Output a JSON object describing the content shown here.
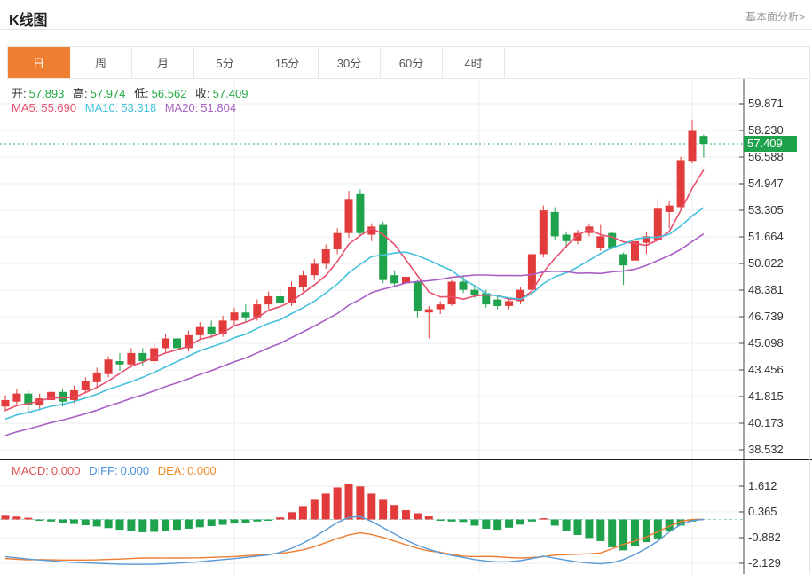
{
  "header": {
    "title": "K线图",
    "link": "基本面分析>"
  },
  "tabs": {
    "items": [
      {
        "id": "day",
        "label": "日",
        "active": true
      },
      {
        "id": "week",
        "label": "周",
        "active": false
      },
      {
        "id": "month",
        "label": "月",
        "active": false
      },
      {
        "id": "5m",
        "label": "5分",
        "active": false
      },
      {
        "id": "15m",
        "label": "15分",
        "active": false
      },
      {
        "id": "30m",
        "label": "30分",
        "active": false
      },
      {
        "id": "60m",
        "label": "60分",
        "active": false
      },
      {
        "id": "4h",
        "label": "4时",
        "active": false
      }
    ]
  },
  "info": {
    "open_label": "开:",
    "open": "57.893",
    "high_label": "高:",
    "high": "57.974",
    "low_label": "低:",
    "low": "56.562",
    "close_label": "收:",
    "close": "57.409",
    "ma5_label": "MA5:",
    "ma5": "55.690",
    "ma10_label": "MA10:",
    "ma10": "53.318",
    "ma20_label": "MA20:",
    "ma20": "51.804"
  },
  "macd_info": {
    "macd_label": "MACD:",
    "macd": "0.000",
    "diff_label": "DIFF:",
    "diff": "0.000",
    "dea_label": "DEA:",
    "dea": "0.000"
  },
  "colors": {
    "up": "#e23b3b",
    "down": "#1fa24c",
    "ma5": "#e8506e",
    "ma10": "#45c1dd",
    "ma20": "#a95fc4",
    "diff_line": "#5b9bd5",
    "dea_line": "#ed7d31",
    "price_line": "#2bb24c",
    "price_tag_bg": "#1fa24c",
    "value_green": "#21aa44",
    "macd_label": "#e05252",
    "diff_label": "#4a90e2",
    "dea_label": "#f08a24",
    "zero_dash": "#9fd4c9",
    "grid": "#ececec",
    "axis": "#444",
    "tick_text": "#333",
    "tab_active_bg": "#ee7f31"
  },
  "chart_data": [
    {
      "type": "candlestick",
      "title": "K线图 (daily)",
      "y_tick_labels": [
        "59.871",
        "58.230",
        "56.588",
        "54.947",
        "53.305",
        "51.664",
        "50.022",
        "48.381",
        "46.739",
        "45.098",
        "43.456",
        "41.815",
        "40.173",
        "38.532"
      ],
      "last_price": 57.409,
      "last_candle": {
        "open": 57.893,
        "high": 57.974,
        "low": 56.562,
        "close": 57.409
      },
      "ma_last": {
        "ma5": 55.69,
        "ma10": 53.318,
        "ma20": 51.804
      },
      "ma_windows": [
        5,
        10,
        20
      ],
      "prehistory_closes": [
        37.3,
        37.5,
        37.7,
        37.9,
        38.1,
        38.3,
        38.5,
        38.7,
        38.9,
        39.1,
        39.3,
        39.5,
        39.7,
        39.9,
        40.1,
        40.3,
        40.5,
        40.7,
        40.9,
        41.1
      ],
      "candles_ohlc": [
        [
          41.2,
          41.9,
          40.9,
          41.6
        ],
        [
          41.5,
          42.3,
          41.2,
          42.0
        ],
        [
          42.0,
          42.2,
          40.9,
          41.3
        ],
        [
          41.3,
          42.0,
          41.0,
          41.7
        ],
        [
          41.6,
          42.4,
          41.3,
          42.1
        ],
        [
          42.1,
          42.3,
          41.2,
          41.5
        ],
        [
          41.6,
          42.5,
          41.4,
          42.2
        ],
        [
          42.2,
          43.0,
          42.0,
          42.8
        ],
        [
          42.7,
          43.6,
          42.4,
          43.3
        ],
        [
          43.2,
          44.3,
          43.0,
          44.1
        ],
        [
          44.0,
          44.5,
          43.4,
          43.8
        ],
        [
          43.8,
          44.8,
          43.6,
          44.5
        ],
        [
          44.5,
          44.8,
          43.7,
          44.0
        ],
        [
          44.0,
          45.1,
          43.8,
          44.8
        ],
        [
          44.8,
          45.7,
          44.5,
          45.4
        ],
        [
          45.4,
          45.6,
          44.4,
          44.8
        ],
        [
          44.8,
          45.9,
          44.6,
          45.6
        ],
        [
          45.6,
          46.4,
          45.3,
          46.1
        ],
        [
          46.1,
          46.5,
          45.4,
          45.7
        ],
        [
          45.7,
          46.8,
          45.5,
          46.5
        ],
        [
          46.5,
          47.3,
          46.2,
          47.0
        ],
        [
          47.0,
          47.5,
          46.4,
          46.7
        ],
        [
          46.7,
          47.8,
          46.5,
          47.5
        ],
        [
          47.5,
          48.3,
          47.2,
          48.0
        ],
        [
          48.0,
          48.6,
          47.3,
          47.6
        ],
        [
          47.6,
          48.9,
          47.4,
          48.6
        ],
        [
          48.6,
          49.6,
          48.3,
          49.3
        ],
        [
          49.3,
          50.3,
          49.0,
          50.0
        ],
        [
          50.0,
          51.2,
          49.7,
          50.9
        ],
        [
          50.9,
          52.2,
          50.6,
          51.9
        ],
        [
          51.9,
          54.5,
          51.6,
          54.0
        ],
        [
          54.3,
          54.6,
          51.7,
          51.9
        ],
        [
          51.8,
          52.5,
          51.4,
          52.3
        ],
        [
          52.4,
          52.6,
          48.8,
          49.0
        ],
        [
          49.3,
          49.6,
          48.6,
          48.8
        ],
        [
          48.8,
          49.4,
          48.5,
          49.2
        ],
        [
          48.9,
          49.0,
          46.7,
          47.1
        ],
        [
          47.0,
          47.4,
          45.4,
          47.2
        ],
        [
          47.2,
          47.7,
          46.9,
          47.5
        ],
        [
          47.5,
          49.0,
          47.4,
          48.9
        ],
        [
          48.9,
          49.3,
          48.2,
          48.4
        ],
        [
          48.4,
          48.7,
          47.9,
          48.1
        ],
        [
          48.2,
          48.4,
          47.3,
          47.5
        ],
        [
          47.8,
          48.0,
          47.2,
          47.4
        ],
        [
          47.4,
          47.9,
          47.2,
          47.7
        ],
        [
          47.7,
          48.6,
          47.5,
          48.4
        ],
        [
          48.4,
          50.8,
          48.2,
          50.6
        ],
        [
          50.6,
          53.6,
          50.4,
          53.3
        ],
        [
          53.2,
          53.5,
          51.5,
          51.7
        ],
        [
          51.8,
          52.0,
          51.0,
          51.4
        ],
        [
          51.4,
          52.1,
          51.2,
          51.9
        ],
        [
          51.9,
          52.5,
          51.7,
          52.3
        ],
        [
          51.0,
          52.4,
          50.8,
          51.7
        ],
        [
          51.9,
          52.0,
          50.9,
          51.0
        ],
        [
          50.6,
          50.7,
          48.7,
          49.9
        ],
        [
          50.2,
          51.6,
          50.0,
          51.4
        ],
        [
          51.3,
          52.0,
          50.6,
          51.7
        ],
        [
          51.5,
          54.0,
          51.3,
          53.4
        ],
        [
          53.2,
          53.9,
          52.2,
          53.6
        ],
        [
          53.5,
          56.6,
          53.3,
          56.4
        ],
        [
          56.3,
          58.9,
          56.2,
          58.2
        ],
        [
          57.893,
          57.974,
          56.562,
          57.409
        ]
      ]
    },
    {
      "type": "bar",
      "title": "MACD",
      "y_tick_labels": [
        "1.612",
        "0.365",
        "-0.882",
        "-2.129"
      ],
      "macd_hist": [
        0.18,
        0.14,
        0.08,
        -0.04,
        -0.1,
        -0.16,
        -0.22,
        -0.28,
        -0.34,
        -0.42,
        -0.5,
        -0.57,
        -0.62,
        -0.6,
        -0.55,
        -0.5,
        -0.45,
        -0.38,
        -0.32,
        -0.26,
        -0.2,
        -0.15,
        -0.1,
        -0.06,
        0.1,
        0.35,
        0.65,
        0.95,
        1.25,
        1.55,
        1.7,
        1.6,
        1.25,
        0.95,
        0.7,
        0.45,
        0.3,
        0.15,
        -0.06,
        -0.1,
        -0.12,
        -0.3,
        -0.45,
        -0.5,
        -0.4,
        -0.25,
        -0.1,
        0.06,
        -0.3,
        -0.55,
        -0.75,
        -0.9,
        -1.05,
        -1.35,
        -1.5,
        -1.3,
        -1.1,
        -0.92,
        -0.55,
        -0.3,
        -0.1,
        0.0
      ],
      "diff_line": [
        -1.8,
        -1.86,
        -1.92,
        -1.97,
        -2.01,
        -2.05,
        -2.08,
        -2.11,
        -2.13,
        -2.15,
        -2.17,
        -2.18,
        -2.18,
        -2.17,
        -2.15,
        -2.12,
        -2.09,
        -2.05,
        -2.0,
        -1.95,
        -1.9,
        -1.84,
        -1.78,
        -1.72,
        -1.6,
        -1.4,
        -1.15,
        -0.85,
        -0.5,
        -0.15,
        0.1,
        0.15,
        -0.1,
        -0.4,
        -0.7,
        -1.0,
        -1.25,
        -1.45,
        -1.62,
        -1.75,
        -1.84,
        -1.95,
        -2.02,
        -2.06,
        -2.05,
        -2.0,
        -1.9,
        -1.78,
        -1.88,
        -1.98,
        -2.06,
        -2.12,
        -2.15,
        -2.1,
        -1.95,
        -1.7,
        -1.4,
        -1.05,
        -0.6,
        -0.25,
        -0.05,
        0.0
      ],
      "last_values": {
        "macd": 0.0,
        "diff": 0.0,
        "dea": 0.0
      }
    }
  ]
}
